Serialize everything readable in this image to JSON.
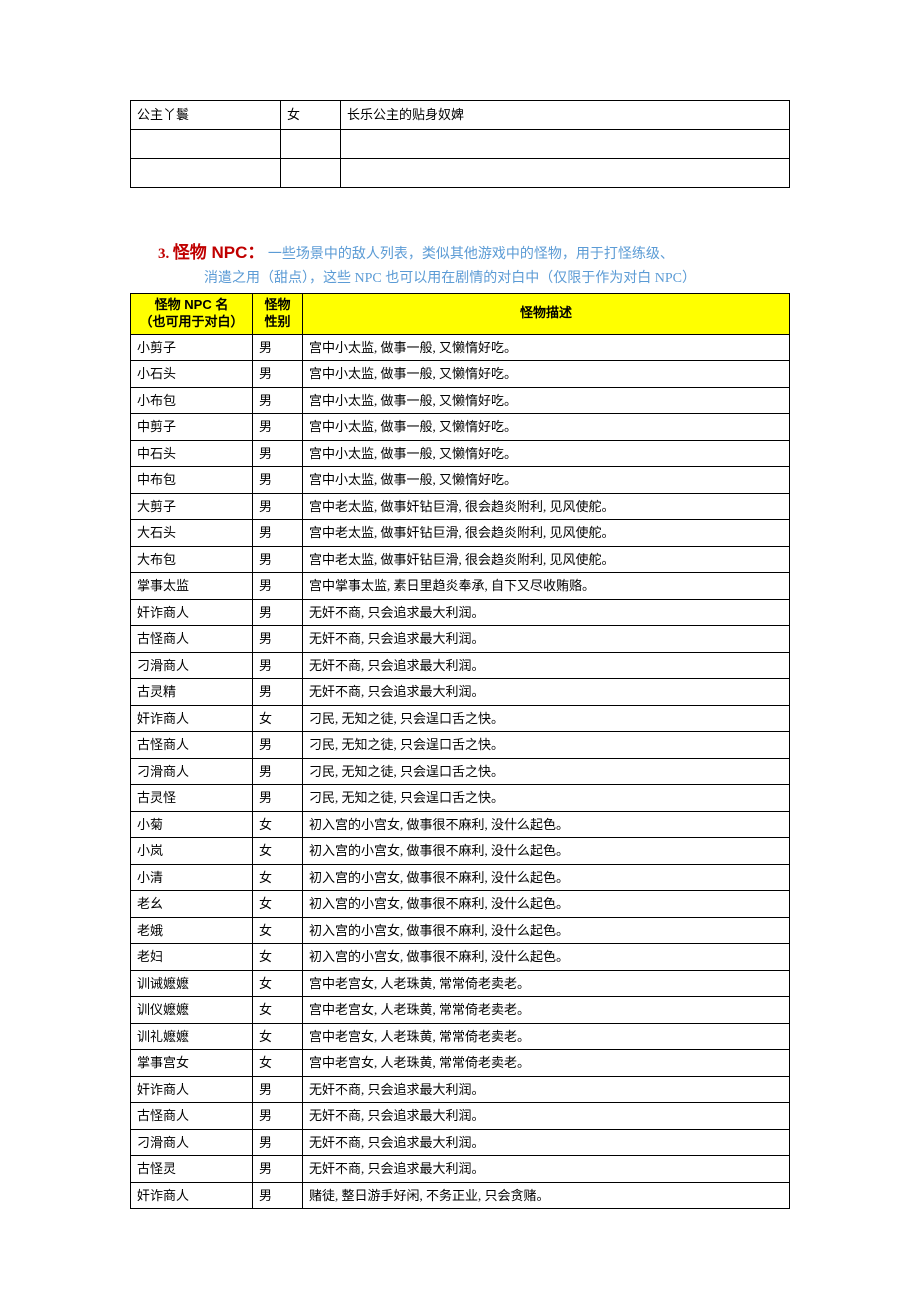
{
  "topTable": {
    "rows": [
      {
        "name": "公主丫鬟",
        "gender": "女",
        "desc": "长乐公主的贴身奴婢"
      },
      {
        "name": "",
        "gender": "",
        "desc": ""
      },
      {
        "name": "",
        "gender": "",
        "desc": ""
      }
    ]
  },
  "section": {
    "number": "3.",
    "title": "怪物 NPC：",
    "desc_line1": "一些场景中的敌人列表，类似其他游戏中的怪物，用于打怪练级、",
    "desc_line2": "消遣之用（甜点），这些 NPC 也可以用在剧情的对白中（仅限于作为对白 NPC）"
  },
  "monsterTable": {
    "header": {
      "name_line1": "怪物 NPC 名",
      "name_line2": "（也可用于对白）",
      "gender_line1": "怪物",
      "gender_line2": "性别",
      "desc": "怪物描述"
    },
    "rows": [
      {
        "name": "小剪子",
        "gender": "男",
        "desc": "宫中小太监, 做事一般, 又懒惰好吃。"
      },
      {
        "name": "小石头",
        "gender": "男",
        "desc": "宫中小太监, 做事一般, 又懒惰好吃。"
      },
      {
        "name": "小布包",
        "gender": "男",
        "desc": "宫中小太监, 做事一般, 又懒惰好吃。"
      },
      {
        "name": "中剪子",
        "gender": "男",
        "desc": "宫中小太监, 做事一般, 又懒惰好吃。"
      },
      {
        "name": "中石头",
        "gender": "男",
        "desc": "宫中小太监, 做事一般, 又懒惰好吃。"
      },
      {
        "name": "中布包",
        "gender": "男",
        "desc": "宫中小太监, 做事一般, 又懒惰好吃。"
      },
      {
        "name": "大剪子",
        "gender": "男",
        "desc": "宫中老太监, 做事奸钻巨滑, 很会趋炎附利, 见风使舵。"
      },
      {
        "name": "大石头",
        "gender": "男",
        "desc": "宫中老太监, 做事奸钻巨滑, 很会趋炎附利, 见风使舵。"
      },
      {
        "name": "大布包",
        "gender": "男",
        "desc": "宫中老太监, 做事奸钻巨滑, 很会趋炎附利, 见风使舵。"
      },
      {
        "name": "掌事太监",
        "gender": "男",
        "desc": "宫中掌事太监, 素日里趋炎奉承, 自下又尽收贿赂。"
      },
      {
        "name": "奸诈商人",
        "gender": "男",
        "desc": "无奸不商, 只会追求最大利润。"
      },
      {
        "name": "古怪商人",
        "gender": "男",
        "desc": "无奸不商, 只会追求最大利润。"
      },
      {
        "name": "刁滑商人",
        "gender": "男",
        "desc": "无奸不商, 只会追求最大利润。"
      },
      {
        "name": "古灵精",
        "gender": "男",
        "desc": "无奸不商, 只会追求最大利润。"
      },
      {
        "name": "奸诈商人",
        "gender": "女",
        "desc": "刁民, 无知之徒, 只会逞口舌之快。"
      },
      {
        "name": "古怪商人",
        "gender": "男",
        "desc": "刁民, 无知之徒, 只会逞口舌之快。"
      },
      {
        "name": "刁滑商人",
        "gender": "男",
        "desc": "刁民, 无知之徒, 只会逞口舌之快。"
      },
      {
        "name": "古灵怪",
        "gender": "男",
        "desc": "刁民, 无知之徒, 只会逞口舌之快。"
      },
      {
        "name": "小菊",
        "gender": "女",
        "desc": "初入宫的小宫女, 做事很不麻利, 没什么起色。"
      },
      {
        "name": "小岚",
        "gender": "女",
        "desc": "初入宫的小宫女, 做事很不麻利, 没什么起色。"
      },
      {
        "name": "小清",
        "gender": "女",
        "desc": "初入宫的小宫女, 做事很不麻利, 没什么起色。"
      },
      {
        "name": "老幺",
        "gender": "女",
        "desc": "初入宫的小宫女, 做事很不麻利, 没什么起色。"
      },
      {
        "name": "老娥",
        "gender": "女",
        "desc": "初入宫的小宫女, 做事很不麻利, 没什么起色。"
      },
      {
        "name": "老妇",
        "gender": "女",
        "desc": "初入宫的小宫女, 做事很不麻利, 没什么起色。"
      },
      {
        "name": "训诫嬷嬷",
        "gender": "女",
        "desc": "宫中老宫女, 人老珠黄, 常常倚老卖老。"
      },
      {
        "name": "训仪嬷嬷",
        "gender": "女",
        "desc": "宫中老宫女, 人老珠黄, 常常倚老卖老。"
      },
      {
        "name": "训礼嬷嬷",
        "gender": "女",
        "desc": "宫中老宫女, 人老珠黄, 常常倚老卖老。"
      },
      {
        "name": "掌事宫女",
        "gender": "女",
        "desc": "宫中老宫女, 人老珠黄, 常常倚老卖老。"
      },
      {
        "name": "奸诈商人",
        "gender": "男",
        "desc": "无奸不商, 只会追求最大利润。"
      },
      {
        "name": "古怪商人",
        "gender": "男",
        "desc": "无奸不商, 只会追求最大利润。"
      },
      {
        "name": "刁滑商人",
        "gender": "男",
        "desc": "无奸不商, 只会追求最大利润。"
      },
      {
        "name": "古怪灵",
        "gender": "男",
        "desc": "无奸不商, 只会追求最大利润。"
      },
      {
        "name": "奸诈商人",
        "gender": "男",
        "desc": "赌徒, 整日游手好闲, 不务正业, 只会贪赌。"
      }
    ]
  }
}
